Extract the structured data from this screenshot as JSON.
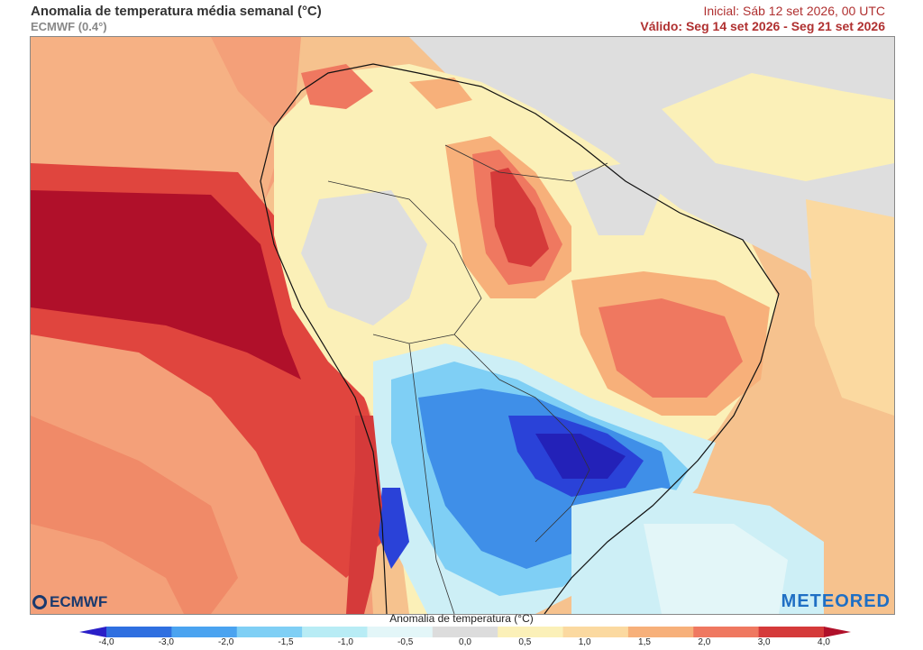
{
  "header": {
    "title": "Anomalia de temperatura média semanal (°C)",
    "model": "ECMWF (0.4°)",
    "initial": "Inicial: Sáb 12 set 2026, 00 UTC",
    "valid": "Válido: Seg 14 set 2026 - Seg 21 set 2026"
  },
  "logos": {
    "left": "ECMWF",
    "right": "METEORED"
  },
  "legend": {
    "title": "Anomalia de temperatura (°C)",
    "ticks": [
      "-4,0",
      "-3,0",
      "-2,0",
      "-1,5",
      "-1,0",
      "-0,5",
      "0,0",
      "0,5",
      "1,0",
      "1,5",
      "2,0",
      "3,0",
      "4,0"
    ],
    "colors": [
      "#2a1fc8",
      "#2f6fe0",
      "#4aa3f0",
      "#7fcff5",
      "#b8ecf5",
      "#e3f6f8",
      "#dcdcdc",
      "#fbf0b8",
      "#fbd9a0",
      "#f7b07a",
      "#ef7860",
      "#d53a3a",
      "#b0102a"
    ]
  },
  "map": {
    "region": "South America",
    "colors": {
      "warm_strong": "#b0102a",
      "warm_mid": "#e0453e",
      "warm_light": "#f4a079",
      "warm_pale": "#fbd8a0",
      "neutral": "#dedede",
      "cool_pale": "#cdeff6",
      "cool_light": "#7fcff5",
      "cool_mid": "#3f8fe8",
      "cool_strong": "#2321b8"
    }
  }
}
